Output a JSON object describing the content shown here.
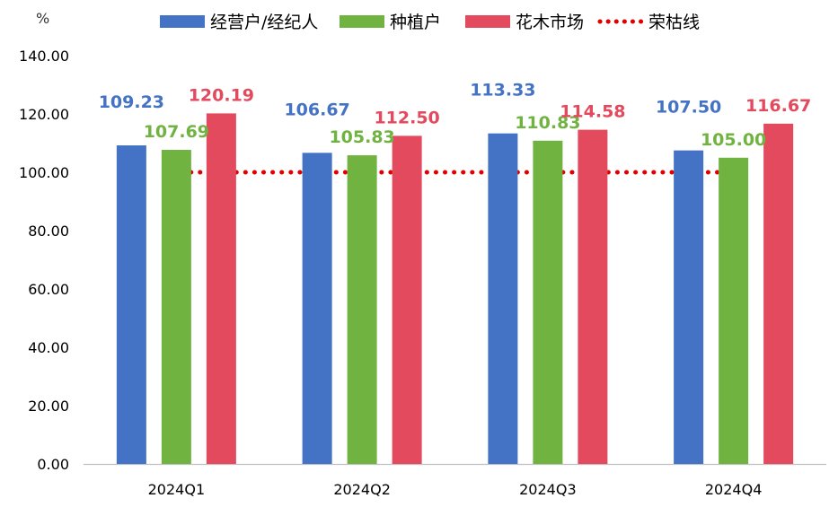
{
  "chart_data": {
    "type": "bar",
    "title": "",
    "ylabel": "%",
    "xlabel": "",
    "ylim": [
      0,
      140
    ],
    "yticks": [
      "0.00",
      "20.00",
      "40.00",
      "60.00",
      "80.00",
      "100.00",
      "120.00",
      "140.00"
    ],
    "grid": false,
    "legend_position": "top",
    "categories": [
      "2024Q1",
      "2024Q2",
      "2024Q3",
      "2024Q4"
    ],
    "series": [
      {
        "name": "经营户/经纪人",
        "color": "#4472C4",
        "values": [
          109.23,
          106.67,
          113.33,
          107.5
        ],
        "labels": [
          "109.23",
          "106.67",
          "113.33",
          "107.50"
        ]
      },
      {
        "name": "种植户",
        "color": "#70B340",
        "values": [
          107.69,
          105.83,
          110.83,
          105.0
        ],
        "labels": [
          "107.69",
          "105.83",
          "110.83",
          "105.00"
        ]
      },
      {
        "name": "花木市场",
        "color": "#E34A5E",
        "values": [
          120.19,
          112.5,
          114.58,
          116.67
        ],
        "labels": [
          "120.19",
          "112.50",
          "114.58",
          "116.67"
        ]
      }
    ],
    "reference_line": {
      "name": "荣枯线",
      "value": 100,
      "color": "#E00000",
      "style": "dotted"
    }
  }
}
